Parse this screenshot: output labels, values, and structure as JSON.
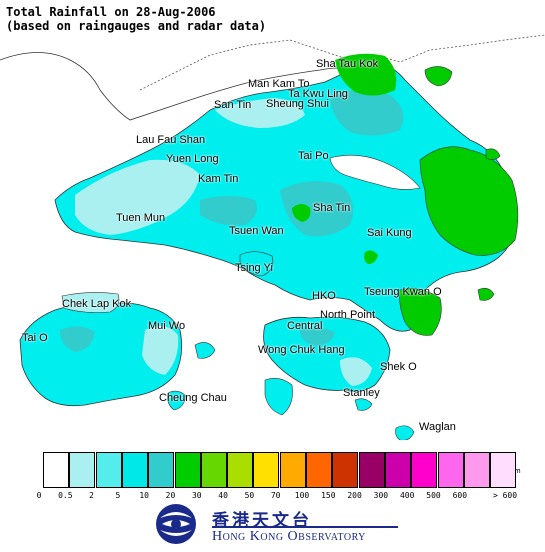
{
  "title": {
    "line1": "Total Rainfall on 28-Aug-2006",
    "line2": "(based on raingauges and radar data)"
  },
  "places": [
    {
      "name": "Sha Tau Kok"
    },
    {
      "name": "Man Kam To"
    },
    {
      "name": "Ta Kwu Ling"
    },
    {
      "name": "Sheung Shui"
    },
    {
      "name": "San Tin"
    },
    {
      "name": "Lau Fau Shan"
    },
    {
      "name": "Yuen Long"
    },
    {
      "name": "Tai Po"
    },
    {
      "name": "Kam Tin"
    },
    {
      "name": "Tuen Mun"
    },
    {
      "name": "Sha Tin"
    },
    {
      "name": "Sai Kung"
    },
    {
      "name": "Tsuen Wan"
    },
    {
      "name": "Tsing Yi"
    },
    {
      "name": "Chek Lap Kok"
    },
    {
      "name": "HKO"
    },
    {
      "name": "Tseung Kwan O"
    },
    {
      "name": "Mui Wo"
    },
    {
      "name": "North Point"
    },
    {
      "name": "Central"
    },
    {
      "name": "Tai O"
    },
    {
      "name": "Wong Chuk Hang"
    },
    {
      "name": "Shek O"
    },
    {
      "name": "Cheung Chau"
    },
    {
      "name": "Stanley"
    },
    {
      "name": "Waglan"
    }
  ],
  "legend": {
    "unit": "mm",
    "ticks": [
      "0",
      "0.5",
      "2",
      "5",
      "10",
      "20",
      "30",
      "40",
      "50",
      "70",
      "100",
      "150",
      "200",
      "300",
      "400",
      "500",
      "600",
      "> 600"
    ],
    "colors": [
      "#ffffff",
      "#aaf0f0",
      "#55ecec",
      "#00e8e8",
      "#33cccc",
      "#00cc00",
      "#66d800",
      "#aadd00",
      "#ffe000",
      "#ffaa00",
      "#ff6600",
      "#cc3300",
      "#990066",
      "#cc00aa",
      "#ff00cc",
      "#ff66ee",
      "#ff99ee",
      "#ffddff"
    ]
  },
  "logo": {
    "chinese": "香港天文台",
    "english": "Hong Kong Observatory"
  },
  "colors": {
    "sea": "#ffffff",
    "rain_0_5_2": "#aaf0f0",
    "rain_2_5": "#00eeee",
    "rain_5_10": "#33cccc",
    "rain_10_20": "#00cc00",
    "boundary": "#333333",
    "brand": "#1a2a8a"
  }
}
